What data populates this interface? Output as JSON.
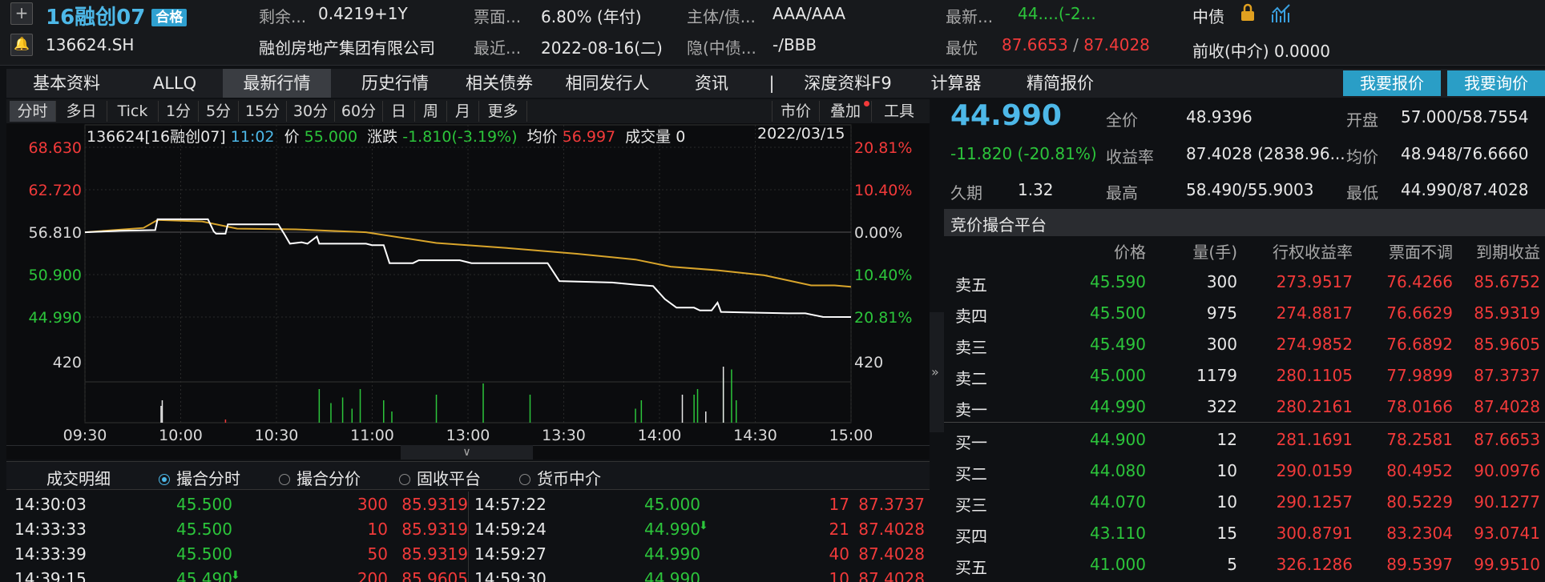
{
  "header": {
    "plus": "+",
    "name": "16融创07",
    "badge": "合格",
    "code": "136624.SH",
    "remain_label": "剩余...",
    "remain": "0.4219+1Y",
    "coupon_label": "票面...",
    "coupon": "6.80% (年付)",
    "rating_label": "主体/债...",
    "rating": "AAA/AAA",
    "latest_label": "最新...",
    "latest": "44....(-2...",
    "issuer": "融创房地产集团有限公司",
    "recent_label": "最近...",
    "recent": "2022-08-16(二)",
    "implied_label": "隐(中债...",
    "implied": "-/BBB",
    "best_label": "最优",
    "best_bid": "87.6653",
    "best_sep": "/",
    "best_ask": "87.4028",
    "cdc": "中债",
    "prev_label": "前收(中介)",
    "prev": "0.0000"
  },
  "tabs": [
    "基本资料",
    "ALLQ",
    "最新行情",
    "历史行情",
    "相关债券",
    "相同发行人",
    "资讯",
    "|",
    "深度资料F9",
    "计算器",
    "精简报价"
  ],
  "buttons": {
    "quote": "我要报价",
    "inquiry": "我要询价"
  },
  "chart_tools": [
    "分时",
    "多日",
    "Tick",
    "1分",
    "5分",
    "15分",
    "30分",
    "60分",
    "日",
    "周",
    "月",
    "更多"
  ],
  "chart_right_tools": [
    "市价",
    "叠加",
    "工具"
  ],
  "chart_info": {
    "code": "136624[16融创07]",
    "time": "11:02",
    "price_label": "价",
    "price": "55.000",
    "chg_label": "涨跌",
    "chg": "-1.810(-3.19%)",
    "avg_label": "均价",
    "avg": "56.997",
    "vol_label": "成交量",
    "vol": "0",
    "date": "2022/03/15"
  },
  "chart_data": {
    "type": "line",
    "x_ticks": [
      "09:30",
      "10:00",
      "10:30",
      "11:00",
      "13:00",
      "13:30",
      "14:00",
      "14:30",
      "15:00"
    ],
    "y_left": [
      "68.630",
      "62.720",
      "56.810",
      "50.900",
      "44.990"
    ],
    "y_right": [
      "20.81%",
      "10.40%",
      "0.00%",
      "10.40%",
      "20.81%"
    ],
    "vol_label": "420",
    "ylim": [
      44.99,
      68.63
    ],
    "series": [
      {
        "color": "#ffffff",
        "values": [
          [
            0,
            56.8
          ],
          [
            30,
            57.0
          ],
          [
            60,
            57.1
          ],
          [
            62,
            58.6
          ],
          [
            105,
            58.6
          ],
          [
            110,
            56.9
          ],
          [
            112,
            56.6
          ],
          [
            120,
            56.6
          ],
          [
            122,
            57.9
          ],
          [
            165,
            57.9
          ],
          [
            170,
            56.6
          ],
          [
            175,
            55.2
          ],
          [
            185,
            55.4
          ],
          [
            190,
            55.2
          ],
          [
            198,
            56.2
          ],
          [
            200,
            55.2
          ],
          [
            240,
            55.2
          ],
          [
            245,
            55.0
          ],
          [
            255,
            55.0
          ],
          [
            260,
            52.5
          ],
          [
            280,
            52.5
          ],
          [
            285,
            52.9
          ],
          [
            320,
            52.9
          ],
          [
            330,
            52.5
          ],
          [
            395,
            52.5
          ],
          [
            405,
            50.0
          ],
          [
            450,
            49.8
          ],
          [
            470,
            49.5
          ],
          [
            485,
            49.3
          ],
          [
            495,
            47.5
          ],
          [
            505,
            46.3
          ],
          [
            520,
            46.3
          ],
          [
            525,
            45.9
          ],
          [
            535,
            45.9
          ],
          [
            540,
            47.0
          ],
          [
            543,
            45.7
          ],
          [
            570,
            45.6
          ],
          [
            600,
            45.5
          ],
          [
            615,
            45.5
          ],
          [
            630,
            45.0
          ],
          [
            654,
            44.99
          ]
        ]
      },
      {
        "color": "#d9a52b",
        "values": [
          [
            0,
            56.8
          ],
          [
            50,
            57.4
          ],
          [
            62,
            58.5
          ],
          [
            100,
            58.3
          ],
          [
            130,
            57.3
          ],
          [
            180,
            57.2
          ],
          [
            240,
            56.8
          ],
          [
            300,
            55.3
          ],
          [
            360,
            54.6
          ],
          [
            420,
            53.8
          ],
          [
            470,
            53.0
          ],
          [
            500,
            52.0
          ],
          [
            540,
            51.5
          ],
          [
            580,
            50.8
          ],
          [
            620,
            49.4
          ],
          [
            640,
            49.4
          ],
          [
            654,
            49.2
          ]
        ]
      }
    ]
  },
  "bottom_tabs": {
    "detail": "成交明细",
    "opts": [
      "撮合分时",
      "撮合分价",
      "固收平台",
      "货币中介"
    ]
  },
  "trades_left": [
    {
      "time": "14:30:03",
      "price": "45.500",
      "qty": "300",
      "yld": "85.9319"
    },
    {
      "time": "14:33:33",
      "price": "45.500",
      "qty": "10",
      "yld": "85.9319"
    },
    {
      "time": "14:33:39",
      "price": "45.500",
      "qty": "50",
      "yld": "85.9319"
    },
    {
      "time": "14:39:15",
      "price": "45.490",
      "qty": "200",
      "yld": "85.9605"
    }
  ],
  "trades_right": [
    {
      "time": "14:57:22",
      "price": "45.000",
      "qty": "17",
      "yld": "87.3737"
    },
    {
      "time": "14:59:24",
      "price": "44.990",
      "qty": "21",
      "yld": "87.4028"
    },
    {
      "time": "14:59:27",
      "price": "44.990",
      "qty": "40",
      "yld": "87.4028"
    },
    {
      "time": "14:59:30",
      "price": "44.990",
      "qty": "10",
      "yld": "87.4028"
    }
  ],
  "quote": {
    "last": "44.990",
    "chg": "-11.820 (-20.81%)",
    "full_label": "全价",
    "full": "48.9396",
    "open_label": "开盘",
    "open": "57.000/58.7554",
    "ytm_label": "收益率",
    "ytm": "87.4028 (2838.96...",
    "avg_label": "均价",
    "avg": "48.948/76.6660",
    "dur_label": "久期",
    "dur": "1.32",
    "high_label": "最高",
    "high": "58.490/55.9003",
    "low_label": "最低",
    "low": "44.990/87.4028",
    "platform": "竞价撮合平台",
    "cols": [
      "价格",
      "量(手)",
      "行权收益率",
      "票面不调",
      "到期收益"
    ]
  },
  "book": [
    {
      "side": "卖五",
      "price": "45.590",
      "qty": "300",
      "r1": "273.9517",
      "r2": "76.4266",
      "r3": "85.6752"
    },
    {
      "side": "卖四",
      "price": "45.500",
      "qty": "975",
      "r1": "274.8817",
      "r2": "76.6629",
      "r3": "85.9319"
    },
    {
      "side": "卖三",
      "price": "45.490",
      "qty": "300",
      "r1": "274.9852",
      "r2": "76.6892",
      "r3": "85.9605"
    },
    {
      "side": "卖二",
      "price": "45.000",
      "qty": "1179",
      "r1": "280.1105",
      "r2": "77.9899",
      "r3": "87.3737"
    },
    {
      "side": "卖一",
      "price": "44.990",
      "qty": "322",
      "r1": "280.2161",
      "r2": "78.0166",
      "r3": "87.4028"
    },
    {
      "side": "买一",
      "price": "44.900",
      "qty": "12",
      "r1": "281.1691",
      "r2": "78.2581",
      "r3": "87.6653"
    },
    {
      "side": "买二",
      "price": "44.080",
      "qty": "10",
      "r1": "290.0159",
      "r2": "80.4952",
      "r3": "90.0976"
    },
    {
      "side": "买三",
      "price": "44.070",
      "qty": "10",
      "r1": "290.1257",
      "r2": "80.5229",
      "r3": "90.1277"
    },
    {
      "side": "买四",
      "price": "43.110",
      "qty": "15",
      "r1": "300.8791",
      "r2": "83.2304",
      "r3": "93.0741"
    },
    {
      "side": "买五",
      "price": "41.000",
      "qty": "5",
      "r1": "326.1286",
      "r2": "89.5397",
      "r3": "99.9510"
    }
  ]
}
